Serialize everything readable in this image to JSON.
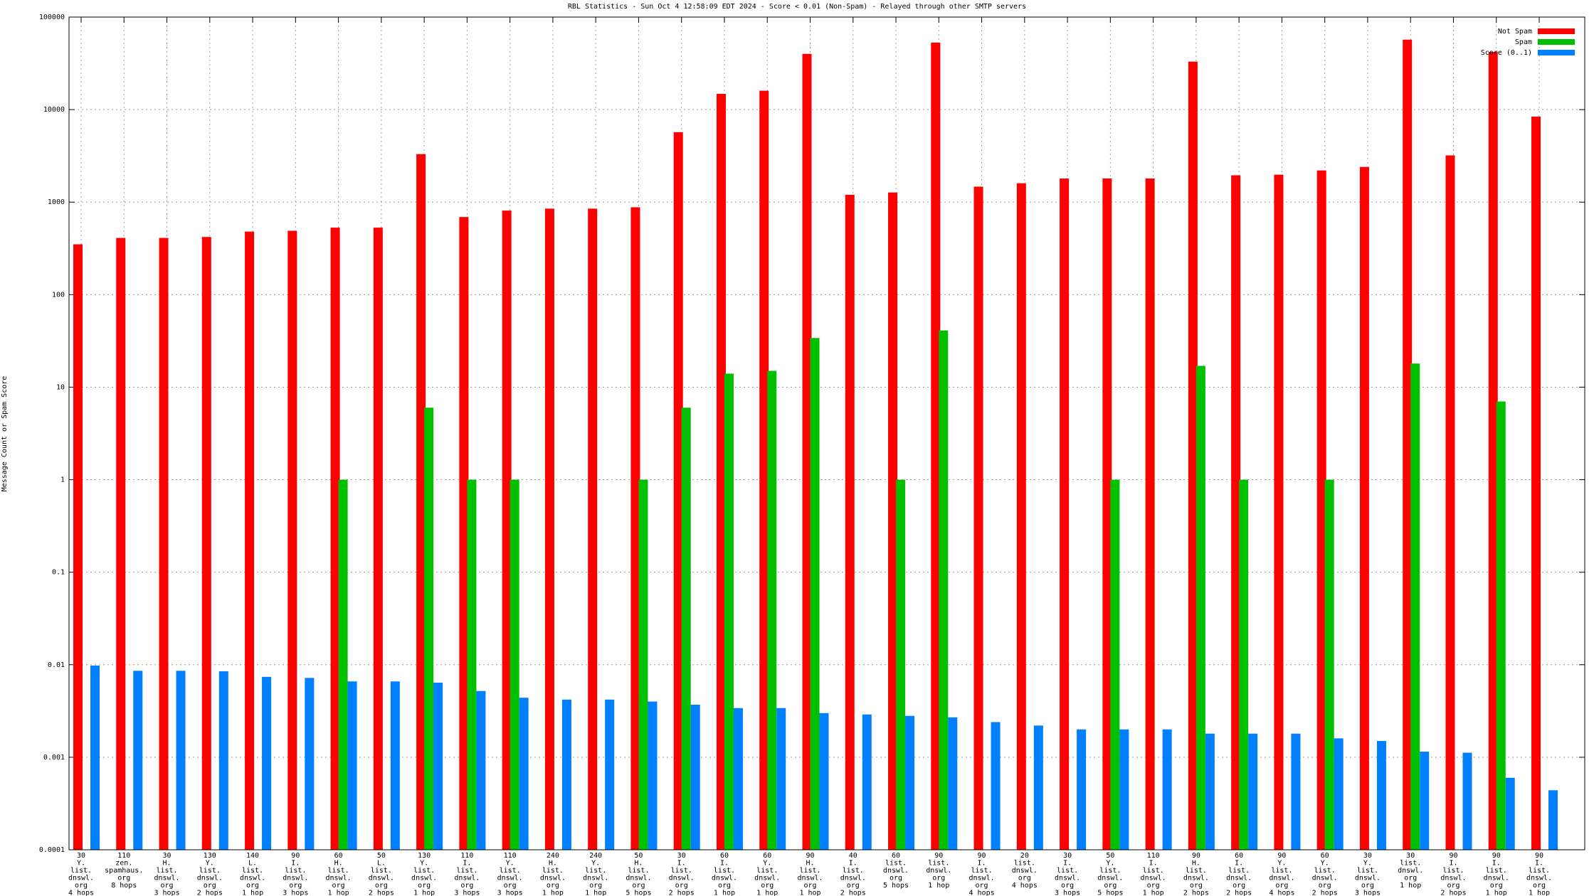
{
  "chart_data": {
    "type": "bar",
    "title": "RBL Statistics - Sun Oct  4 12:58:09 EDT 2024 - Score < 0.01 (Non-Spam) - Relayed through other SMTP servers",
    "y_label": "Message Count or Spam Score",
    "log_scale": true,
    "grid": true,
    "legend_position": "top-right",
    "ylim": [
      0.0001,
      100000
    ],
    "yticks": [
      0.0001,
      0.001,
      0.01,
      0.1,
      1,
      10,
      100,
      1000,
      10000,
      100000
    ],
    "categories": [
      "30\nY.\nlist.\ndnswl.\norg\n4 hops",
      "110\nzen.\nspamhaus.\norg\n8 hops",
      "30\nH.\nlist.\ndnswl.\norg\n3 hops",
      "130\nY.\nlist.\ndnswl.\norg\n2 hops",
      "140\nL.\nlist.\ndnswl.\norg\n1 hop",
      "90\nI.\nlist.\ndnswl.\norg\n3 hops",
      "60\nH.\nlist.\ndnswl.\norg\n1 hop",
      "50\nL.\nlist.\ndnswl.\norg\n2 hops",
      "130\nY.\nlist.\ndnswl.\norg\n1 hop",
      "110\nI.\nlist.\ndnswl.\norg\n3 hops",
      "110\nY.\nlist.\ndnswl.\norg\n3 hops",
      "240\nH.\nlist.\ndnswl.\norg\n1 hop",
      "240\nY.\nlist.\ndnswl.\norg\n1 hop",
      "50\nH.\nlist.\ndnswl.\norg\n5 hops",
      "30\nI.\nlist.\ndnswl.\norg\n2 hops",
      "60\nI.\nlist.\ndnswl.\norg\n1 hop",
      "60\nY.\nlist.\ndnswl.\norg\n1 hop",
      "90\nH.\nlist.\ndnswl.\norg\n1 hop",
      "40\nI.\nlist.\ndnswl.\norg\n2 hops",
      "60\nlist.\ndnswl.\norg\n5 hops",
      "90\nlist.\ndnswl.\norg\n1 hop",
      "90\nI.\nlist.\ndnswl.\norg\n4 hops",
      "20\nlist.\ndnswl.\norg\n4 hops",
      "30\nI.\nlist.\ndnswl.\norg\n3 hops",
      "50\nY.\nlist.\ndnswl.\norg\n5 hops",
      "110\nI.\nlist.\ndnswl.\norg\n1 hop",
      "90\nH.\nlist.\ndnswl.\norg\n2 hops",
      "60\nI.\nlist.\ndnswl.\norg\n2 hops",
      "90\nY.\nlist.\ndnswl.\norg\n4 hops",
      "60\nY.\nlist.\ndnswl.\norg\n2 hops",
      "30\nY.\nlist.\ndnswl.\norg\n3 hops",
      "30\nlist.\ndnswl.\norg\n1 hop",
      "90\nI.\nlist.\ndnswl.\norg\n2 hops",
      "90\nI.\nlist.\ndnswl.\norg\n1 hop",
      "90\nI.\nlist.\ndnswl.\norg\n1 hop"
    ],
    "series": [
      {
        "name": "Not Spam",
        "color": "#ff0000",
        "values": [
          350,
          410,
          410,
          420,
          480,
          490,
          530,
          530,
          3300,
          690,
          810,
          850,
          850,
          880,
          5700,
          14800,
          16000,
          40000,
          1200,
          1270,
          53000,
          1470,
          1600,
          1800,
          1800,
          1800,
          33000,
          1950,
          1980,
          2200,
          2400,
          57000,
          3200,
          42000,
          8400
        ]
      },
      {
        "name": "Spam",
        "color": "#00c000",
        "values": [
          null,
          null,
          null,
          null,
          null,
          null,
          1,
          null,
          6,
          1,
          1,
          null,
          null,
          1,
          6,
          14,
          15,
          34,
          null,
          1,
          41,
          null,
          null,
          null,
          1,
          null,
          17,
          1,
          null,
          1,
          null,
          18,
          null,
          7,
          null
        ]
      },
      {
        "name": "Score (0..1)",
        "color": "#0080ff",
        "values": [
          0.0098,
          0.0086,
          0.0086,
          0.0085,
          0.0074,
          0.0072,
          0.0066,
          0.0066,
          0.0064,
          0.0052,
          0.0044,
          0.0042,
          0.0042,
          0.004,
          0.0037,
          0.0034,
          0.0034,
          0.003,
          0.0029,
          0.0028,
          0.0027,
          0.0024,
          0.0022,
          0.002,
          0.002,
          0.002,
          0.0018,
          0.0018,
          0.0018,
          0.0016,
          0.0015,
          0.00115,
          0.00112,
          0.0006,
          0.00044
        ]
      }
    ]
  }
}
